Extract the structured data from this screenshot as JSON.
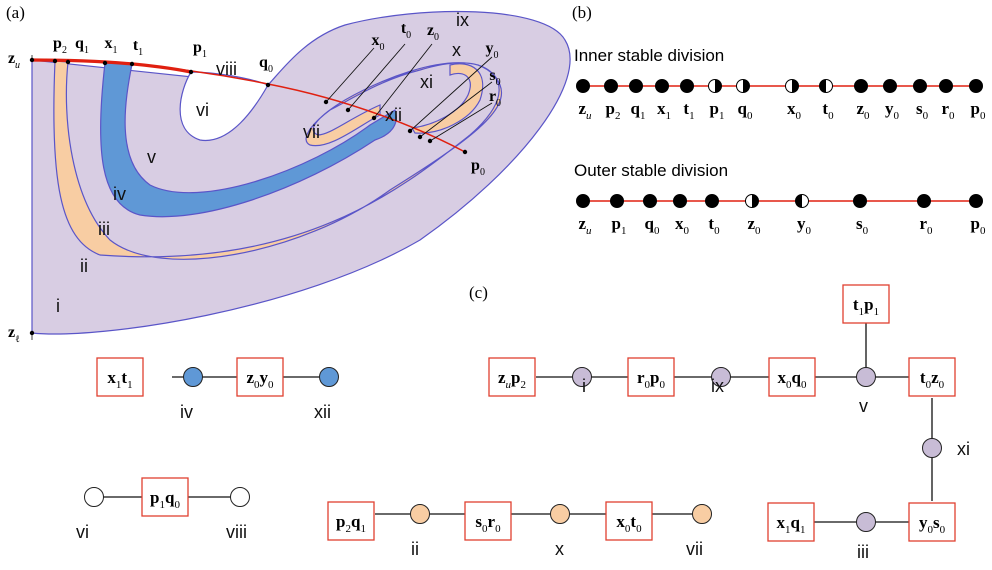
{
  "panels": {
    "a": "(a)",
    "b": "(b)",
    "c": "(c)"
  },
  "colors": {
    "region_fill": "#d8cde3",
    "region_stroke": "#5a55c8",
    "blue_band": "#5f98d6",
    "orange_band": "#f8cda3",
    "manifold": "#e02010",
    "box_border": "#e04030",
    "node_purple": "#c8bcd6",
    "node_blue": "#5f98d6",
    "node_orange": "#f8cda3"
  },
  "diagram_a": {
    "regions": [
      "i",
      "ii",
      "iii",
      "iv",
      "v",
      "vi",
      "vii",
      "viii",
      "ix",
      "x",
      "xi",
      "xii"
    ],
    "points": {
      "zu": {
        "base": "z",
        "sub": "u"
      },
      "zl": {
        "base": "z",
        "sub": "ℓ"
      },
      "p2": {
        "base": "p",
        "sub": "2"
      },
      "q1": {
        "base": "q",
        "sub": "1"
      },
      "x1": {
        "base": "x",
        "sub": "1"
      },
      "t1": {
        "base": "t",
        "sub": "1"
      },
      "p1": {
        "base": "p",
        "sub": "1"
      },
      "q0": {
        "base": "q",
        "sub": "0"
      },
      "x0": {
        "base": "x",
        "sub": "0"
      },
      "t0": {
        "base": "t",
        "sub": "0"
      },
      "z0": {
        "base": "z",
        "sub": "0"
      },
      "y0": {
        "base": "y",
        "sub": "0"
      },
      "s0": {
        "base": "s",
        "sub": "0"
      },
      "r0": {
        "base": "r",
        "sub": "0"
      },
      "p0": {
        "base": "p",
        "sub": "0"
      }
    }
  },
  "inner_division": {
    "title": "Inner stable division",
    "labels": [
      {
        "base": "z",
        "sub": "u"
      },
      {
        "base": "p",
        "sub": "2"
      },
      {
        "base": "q",
        "sub": "1"
      },
      {
        "base": "x",
        "sub": "1"
      },
      {
        "base": "t",
        "sub": "1"
      },
      {
        "base": "p",
        "sub": "1"
      },
      {
        "base": "q",
        "sub": "0"
      },
      {
        "base": "x",
        "sub": "0"
      },
      {
        "base": "t",
        "sub": "0"
      },
      {
        "base": "z",
        "sub": "0"
      },
      {
        "base": "y",
        "sub": "0"
      },
      {
        "base": "s",
        "sub": "0"
      },
      {
        "base": "r",
        "sub": "0"
      },
      {
        "base": "p",
        "sub": "0"
      }
    ],
    "markers": [
      "full",
      "full",
      "full",
      "full",
      "full",
      "half-right",
      "half-right",
      "half-right",
      "half-left",
      "full",
      "full",
      "full",
      "full",
      "full"
    ]
  },
  "outer_division": {
    "title": "Outer stable division",
    "labels": [
      {
        "base": "z",
        "sub": "u"
      },
      {
        "base": "p",
        "sub": "1"
      },
      {
        "base": "q",
        "sub": "0"
      },
      {
        "base": "x",
        "sub": "0"
      },
      {
        "base": "t",
        "sub": "0"
      },
      {
        "base": "z",
        "sub": "0"
      },
      {
        "base": "y",
        "sub": "0"
      },
      {
        "base": "s",
        "sub": "0"
      },
      {
        "base": "r",
        "sub": "0"
      },
      {
        "base": "p",
        "sub": "0"
      }
    ],
    "markers": [
      "full",
      "full",
      "full",
      "full",
      "full",
      "half-right",
      "half-left",
      "full",
      "full",
      "full"
    ]
  },
  "graph_blue": {
    "boxes": [
      {
        "parts": [
          {
            "base": "x",
            "sub": "1"
          },
          {
            "base": "t",
            "sub": "1"
          }
        ]
      },
      {
        "parts": [
          {
            "base": "z",
            "sub": "0"
          },
          {
            "base": "y",
            "sub": "0"
          }
        ]
      }
    ],
    "nodes": [
      "iv",
      "xii"
    ]
  },
  "graph_white": {
    "boxes": [
      {
        "parts": [
          {
            "base": "p",
            "sub": "1"
          },
          {
            "base": "q",
            "sub": "0"
          }
        ]
      }
    ],
    "nodes": [
      "vi",
      "viii"
    ]
  },
  "graph_orange": {
    "boxes": [
      {
        "parts": [
          {
            "base": "p",
            "sub": "2"
          },
          {
            "base": "q",
            "sub": "1"
          }
        ]
      },
      {
        "parts": [
          {
            "base": "s",
            "sub": "0"
          },
          {
            "base": "r",
            "sub": "0"
          }
        ]
      },
      {
        "parts": [
          {
            "base": "x",
            "sub": "0"
          },
          {
            "base": "t",
            "sub": "0"
          }
        ]
      }
    ],
    "nodes": [
      "ii",
      "x",
      "vii"
    ]
  },
  "graph_purple": {
    "boxes": [
      {
        "parts": [
          {
            "base": "z",
            "sub": "u"
          },
          {
            "base": "p",
            "sub": "2"
          }
        ]
      },
      {
        "parts": [
          {
            "base": "r",
            "sub": "0"
          },
          {
            "base": "p",
            "sub": "0"
          }
        ]
      },
      {
        "parts": [
          {
            "base": "x",
            "sub": "0"
          },
          {
            "base": "q",
            "sub": "0"
          }
        ]
      },
      {
        "parts": [
          {
            "base": "t",
            "sub": "1"
          },
          {
            "base": "p",
            "sub": "1"
          }
        ]
      },
      {
        "parts": [
          {
            "base": "t",
            "sub": "0"
          },
          {
            "base": "z",
            "sub": "0"
          }
        ]
      },
      {
        "parts": [
          {
            "base": "y",
            "sub": "0"
          },
          {
            "base": "s",
            "sub": "0"
          }
        ]
      },
      {
        "parts": [
          {
            "base": "x",
            "sub": "1"
          },
          {
            "base": "q",
            "sub": "1"
          }
        ]
      }
    ],
    "nodes": [
      "i",
      "ix",
      "v",
      "xi",
      "iii"
    ]
  }
}
